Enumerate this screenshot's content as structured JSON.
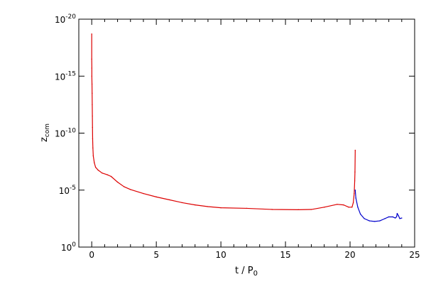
{
  "chart_data": {
    "type": "scatter",
    "xlabel": "t / P",
    "xlabel_sub": "0",
    "ylabel": "z",
    "ylabel_sub": "com",
    "xlim": [
      -1,
      25
    ],
    "ylim_log10": [
      -20,
      0
    ],
    "log_y": true,
    "grid": false,
    "x_ticks": [
      0,
      5,
      10,
      15,
      20,
      25
    ],
    "x_tick_labels": [
      "0",
      "5",
      "10",
      "15",
      "20",
      "25"
    ],
    "y_ticks_log10": [
      0,
      -5,
      -10,
      -15,
      -20
    ],
    "y_tick_base": "10",
    "y_tick_exponents": [
      "0",
      "-5",
      "-10",
      "-15",
      "-20"
    ],
    "series": [
      {
        "color": "#dd0000",
        "points_log10": [
          [
            0.0,
            -18.7
          ],
          [
            0.0,
            -16.5
          ],
          [
            0.01,
            -15.7
          ],
          [
            0.01,
            -15.0
          ],
          [
            0.02,
            -14.3
          ],
          [
            0.03,
            -13.5
          ],
          [
            0.04,
            -12.5
          ],
          [
            0.05,
            -11.5
          ],
          [
            0.06,
            -10.5
          ],
          [
            0.07,
            -9.5
          ],
          [
            0.09,
            -8.7
          ],
          [
            0.12,
            -8.0
          ],
          [
            0.2,
            -7.4
          ],
          [
            0.3,
            -7.0
          ],
          [
            0.5,
            -6.75
          ],
          [
            0.8,
            -6.5
          ],
          [
            1.2,
            -6.35
          ],
          [
            1.5,
            -6.2
          ],
          [
            2.0,
            -5.7
          ],
          [
            2.5,
            -5.3
          ],
          [
            3.0,
            -5.05
          ],
          [
            4.0,
            -4.7
          ],
          [
            5.0,
            -4.4
          ],
          [
            6.0,
            -4.15
          ],
          [
            7.0,
            -3.9
          ],
          [
            8.0,
            -3.7
          ],
          [
            9.0,
            -3.55
          ],
          [
            10.0,
            -3.45
          ],
          [
            12.0,
            -3.4
          ],
          [
            14.0,
            -3.3
          ],
          [
            16.0,
            -3.28
          ],
          [
            17.0,
            -3.3
          ],
          [
            18.0,
            -3.5
          ],
          [
            19.0,
            -3.75
          ],
          [
            19.5,
            -3.7
          ],
          [
            19.9,
            -3.5
          ],
          [
            20.15,
            -3.5
          ],
          [
            20.25,
            -3.9
          ],
          [
            20.32,
            -4.7
          ],
          [
            20.36,
            -5.8
          ],
          [
            20.38,
            -6.6
          ],
          [
            20.4,
            -8.5
          ]
        ]
      },
      {
        "color": "#0000cc",
        "points_log10": [
          [
            20.4,
            -5.0
          ],
          [
            20.45,
            -4.3
          ],
          [
            20.6,
            -3.5
          ],
          [
            20.8,
            -2.9
          ],
          [
            21.1,
            -2.5
          ],
          [
            21.5,
            -2.3
          ],
          [
            21.9,
            -2.25
          ],
          [
            22.3,
            -2.3
          ],
          [
            22.7,
            -2.5
          ],
          [
            23.0,
            -2.65
          ],
          [
            23.3,
            -2.65
          ],
          [
            23.5,
            -2.55
          ],
          [
            23.6,
            -2.65
          ],
          [
            23.65,
            -2.95
          ],
          [
            23.75,
            -2.75
          ],
          [
            23.85,
            -2.5
          ],
          [
            24.0,
            -2.55
          ]
        ]
      }
    ]
  }
}
